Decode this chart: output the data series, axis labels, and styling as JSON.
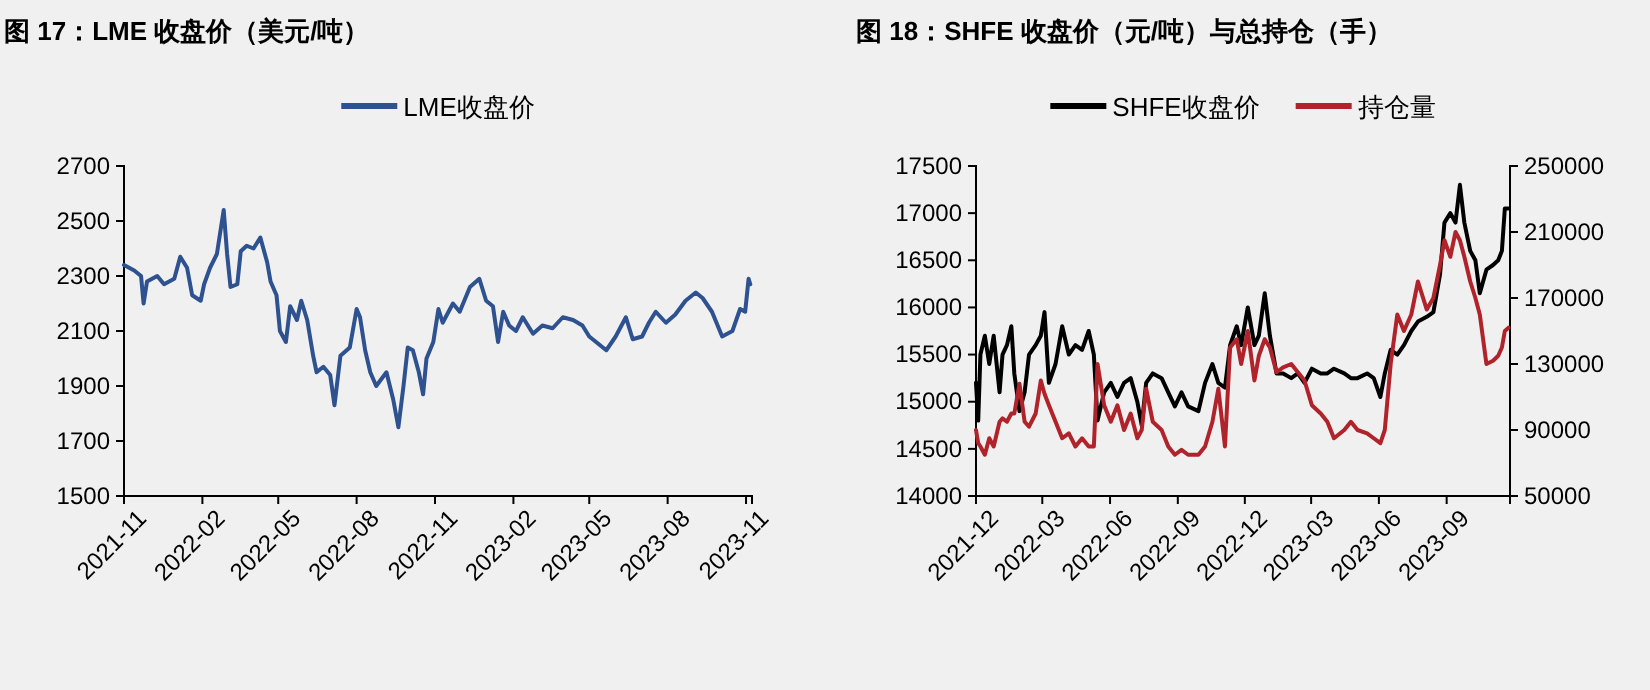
{
  "chart_data": [
    {
      "type": "line",
      "title": "图 17：LME 收盘价（美元/吨）",
      "legend": "top",
      "grid": false,
      "xlim": [
        "2021-11-01",
        "2023-11-08"
      ],
      "xticks": [
        {
          "value": "2021-11",
          "label": "2021-11"
        },
        {
          "value": "2022-02",
          "label": "2022-02"
        },
        {
          "value": "2022-05",
          "label": "2022-05"
        },
        {
          "value": "2022-08",
          "label": "2022-08"
        },
        {
          "value": "2022-11",
          "label": "2022-11"
        },
        {
          "value": "2023-02",
          "label": "2023-02"
        },
        {
          "value": "2023-05",
          "label": "2023-05"
        },
        {
          "value": "2023-08",
          "label": "2023-08"
        },
        {
          "value": "2023-11",
          "label": "2023-11"
        }
      ],
      "ylim": [
        1500,
        2700
      ],
      "yticks": [
        1500,
        1700,
        1900,
        2100,
        2300,
        2500,
        2700
      ],
      "x": [
        "2021-11-01",
        "2021-11-13",
        "2021-11-21",
        "2021-11-24",
        "2021-11-28",
        "2021-12-10",
        "2021-12-18",
        "2021-12-30",
        "2022-01-06",
        "2022-01-14",
        "2022-01-20",
        "2022-01-30",
        "2022-02-03",
        "2022-02-10",
        "2022-02-18",
        "2022-02-22",
        "2022-02-26",
        "2022-03-02",
        "2022-03-06",
        "2022-03-14",
        "2022-03-18",
        "2022-03-25",
        "2022-04-02",
        "2022-04-10",
        "2022-04-18",
        "2022-04-22",
        "2022-04-29",
        "2022-05-03",
        "2022-05-10",
        "2022-05-15",
        "2022-05-23",
        "2022-05-28",
        "2022-06-04",
        "2022-06-11",
        "2022-06-15",
        "2022-06-23",
        "2022-07-01",
        "2022-07-06",
        "2022-07-13",
        "2022-07-24",
        "2022-08-01",
        "2022-08-05",
        "2022-08-11",
        "2022-08-17",
        "2022-08-24",
        "2022-09-05",
        "2022-09-13",
        "2022-09-19",
        "2022-09-25",
        "2022-09-30",
        "2022-10-06",
        "2022-10-13",
        "2022-10-18",
        "2022-10-22",
        "2022-10-30",
        "2022-11-05",
        "2022-11-10",
        "2022-11-22",
        "2022-11-30",
        "2022-12-12",
        "2022-12-23",
        "2022-12-31",
        "2023-01-08",
        "2023-01-14",
        "2023-01-20",
        "2023-01-27",
        "2023-02-04",
        "2023-02-12",
        "2023-02-24",
        "2023-03-07",
        "2023-03-19",
        "2023-03-31",
        "2023-04-12",
        "2023-04-23",
        "2023-05-01",
        "2023-05-09",
        "2023-05-21",
        "2023-06-01",
        "2023-06-13",
        "2023-06-21",
        "2023-07-02",
        "2023-07-10",
        "2023-07-18",
        "2023-07-30",
        "2023-08-10",
        "2023-08-22",
        "2023-09-03",
        "2023-09-11",
        "2023-09-22",
        "2023-10-04",
        "2023-10-16",
        "2023-10-25",
        "2023-10-31",
        "2023-11-04",
        "2023-11-06"
      ],
      "series": [
        {
          "name": "LME收盘价",
          "color": "#2e5190",
          "values": [
            2340,
            2320,
            2300,
            2200,
            2280,
            2300,
            2270,
            2290,
            2370,
            2330,
            2230,
            2210,
            2270,
            2330,
            2380,
            2460,
            2540,
            2380,
            2260,
            2270,
            2390,
            2410,
            2400,
            2440,
            2350,
            2280,
            2230,
            2100,
            2060,
            2190,
            2140,
            2210,
            2140,
            2010,
            1950,
            1970,
            1940,
            1830,
            2010,
            2040,
            2180,
            2150,
            2030,
            1950,
            1900,
            1950,
            1850,
            1750,
            1900,
            2040,
            2030,
            1950,
            1870,
            2000,
            2060,
            2180,
            2130,
            2200,
            2170,
            2260,
            2290,
            2210,
            2190,
            2060,
            2170,
            2120,
            2100,
            2150,
            2090,
            2120,
            2110,
            2150,
            2140,
            2120,
            2080,
            2060,
            2030,
            2080,
            2150,
            2070,
            2080,
            2130,
            2170,
            2130,
            2160,
            2210,
            2240,
            2220,
            2170,
            2080,
            2100,
            2180,
            2170,
            2290,
            2270
          ]
        }
      ]
    },
    {
      "type": "line",
      "title": "图 18：SHFE 收盘价（元/吨）与总持仓（手）",
      "legend": "top",
      "grid": false,
      "xlim": [
        "2021-12-01",
        "2023-11-26"
      ],
      "xticks": [
        {
          "value": "2021-12",
          "label": "2021-12"
        },
        {
          "value": "2022-03",
          "label": "2022-03"
        },
        {
          "value": "2022-06",
          "label": "2022-06"
        },
        {
          "value": "2022-09",
          "label": "2022-09"
        },
        {
          "value": "2022-12",
          "label": "2022-12"
        },
        {
          "value": "2023-03",
          "label": "2023-03"
        },
        {
          "value": "2023-06",
          "label": "2023-06"
        },
        {
          "value": "2023-09",
          "label": "2023-09"
        }
      ],
      "ylim": [
        14000,
        17500
      ],
      "yticks": [
        14000,
        14500,
        15000,
        15500,
        16000,
        16500,
        17000,
        17500
      ],
      "y2lim": [
        50000,
        250000
      ],
      "y2ticks": [
        50000,
        90000,
        130000,
        170000,
        210000,
        250000
      ],
      "x": [
        "2021-12-01",
        "2021-12-04",
        "2021-12-07",
        "2021-12-13",
        "2021-12-19",
        "2021-12-25",
        "2022-01-02",
        "2022-01-06",
        "2022-01-12",
        "2022-01-18",
        "2022-01-22",
        "2022-01-29",
        "2022-02-05",
        "2022-02-11",
        "2022-02-20",
        "2022-02-27",
        "2022-03-04",
        "2022-03-10",
        "2022-03-19",
        "2022-03-28",
        "2022-04-06",
        "2022-04-15",
        "2022-04-24",
        "2022-05-03",
        "2022-05-10",
        "2022-05-15",
        "2022-05-24",
        "2022-06-02",
        "2022-06-11",
        "2022-06-20",
        "2022-06-29",
        "2022-07-08",
        "2022-07-14",
        "2022-07-20",
        "2022-07-29",
        "2022-08-10",
        "2022-08-19",
        "2022-08-28",
        "2022-09-06",
        "2022-09-15",
        "2022-09-29",
        "2022-10-08",
        "2022-10-18",
        "2022-10-26",
        "2022-11-04",
        "2022-11-11",
        "2022-11-20",
        "2022-11-26",
        "2022-12-05",
        "2022-12-14",
        "2022-12-20",
        "2022-12-28",
        "2023-01-04",
        "2023-01-13",
        "2023-01-22",
        "2023-02-02",
        "2023-02-11",
        "2023-02-20",
        "2023-03-02",
        "2023-03-14",
        "2023-03-23",
        "2023-04-01",
        "2023-04-15",
        "2023-04-24",
        "2023-05-03",
        "2023-05-16",
        "2023-05-25",
        "2023-06-03",
        "2023-06-09",
        "2023-06-17",
        "2023-06-26",
        "2023-07-05",
        "2023-07-15",
        "2023-07-24",
        "2023-08-05",
        "2023-08-14",
        "2023-08-23",
        "2023-08-29",
        "2023-09-06",
        "2023-09-13",
        "2023-09-19",
        "2023-09-25",
        "2023-10-03",
        "2023-10-10",
        "2023-10-16",
        "2023-10-25",
        "2023-11-03",
        "2023-11-10",
        "2023-11-15",
        "2023-11-19",
        "2023-11-24"
      ],
      "series": [
        {
          "name": "SHFE收盘价",
          "color": "#000000",
          "values": [
            15200,
            14800,
            15500,
            15700,
            15400,
            15700,
            15100,
            15500,
            15600,
            15800,
            15300,
            14900,
            15100,
            15500,
            15600,
            15700,
            15950,
            15200,
            15400,
            15800,
            15500,
            15600,
            15550,
            15750,
            15500,
            14800,
            15100,
            15200,
            15050,
            15200,
            15250,
            15000,
            14750,
            15200,
            15300,
            15250,
            15100,
            14950,
            15100,
            14950,
            14900,
            15200,
            15400,
            15200,
            15150,
            15600,
            15800,
            15600,
            16000,
            15600,
            15700,
            16150,
            15700,
            15300,
            15300,
            15250,
            15300,
            15200,
            15350,
            15300,
            15300,
            15350,
            15300,
            15250,
            15250,
            15300,
            15250,
            15050,
            15300,
            15550,
            15500,
            15600,
            15750,
            15850,
            15900,
            15950,
            16350,
            16900,
            17000,
            16900,
            17300,
            16900,
            16600,
            16500,
            16150,
            16400,
            16450,
            16500,
            16600,
            17050,
            17050
          ]
        },
        {
          "name": "持仓量",
          "color": "#b0232a",
          "axis": "y2",
          "values": [
            90000,
            82000,
            80000,
            75000,
            85000,
            80000,
            95000,
            97000,
            95000,
            100000,
            100000,
            118000,
            95000,
            92000,
            100000,
            120000,
            112000,
            105000,
            95000,
            85000,
            88000,
            80000,
            85000,
            80000,
            80000,
            130000,
            105000,
            95000,
            105000,
            90000,
            100000,
            85000,
            90000,
            115000,
            95000,
            90000,
            80000,
            75000,
            78000,
            75000,
            75000,
            80000,
            95000,
            115000,
            80000,
            140000,
            145000,
            130000,
            150000,
            120000,
            135000,
            145000,
            140000,
            125000,
            128000,
            130000,
            125000,
            120000,
            105000,
            100000,
            95000,
            85000,
            90000,
            95000,
            90000,
            88000,
            85000,
            82000,
            90000,
            130000,
            160000,
            150000,
            160000,
            180000,
            163000,
            170000,
            190000,
            205000,
            195000,
            210000,
            205000,
            195000,
            180000,
            170000,
            160000,
            130000,
            132000,
            135000,
            140000,
            150000,
            152000
          ]
        }
      ]
    }
  ]
}
